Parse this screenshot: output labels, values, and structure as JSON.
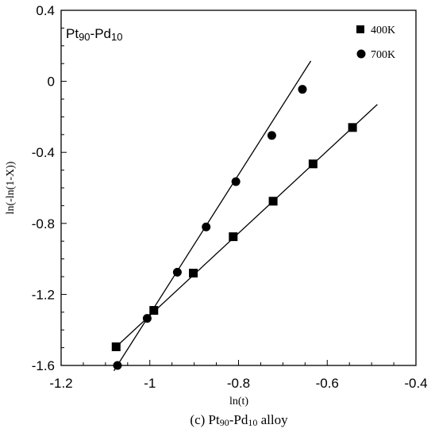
{
  "chart_data": {
    "type": "scatter",
    "title_main": "Pt",
    "title_sub1": "90",
    "title_mid": "-Pd",
    "title_sub2": "10",
    "xlabel": "ln(t)",
    "ylabel": "ln(-ln(1-X))",
    "xlim": [
      -1.2,
      -0.4
    ],
    "ylim": [
      -1.6,
      0.4
    ],
    "xticks": [
      -1.2,
      -1.0,
      -0.8,
      -0.6,
      -0.4
    ],
    "xtick_labels": [
      "-1.2",
      "-1",
      "-0.8",
      "-0.6",
      "-0.4"
    ],
    "yticks": [
      -1.6,
      -1.2,
      -0.8,
      -0.4,
      0.0,
      0.4
    ],
    "ytick_labels": [
      "-1.6",
      "-1.2",
      "-0.8",
      "-0.4",
      "0",
      "0.4"
    ],
    "grid": false,
    "legend_position": "top-right",
    "series": [
      {
        "name": "400K",
        "marker": "square",
        "x": [
          -1.076,
          -0.991,
          -0.902,
          -0.812,
          -0.722,
          -0.632,
          -0.543
        ],
        "y": [
          -1.495,
          -1.29,
          -1.08,
          -0.875,
          -0.675,
          -0.465,
          -0.26
        ],
        "fit_x": [
          -1.076,
          -0.487
        ],
        "fit_y": [
          -1.495,
          -0.13
        ]
      },
      {
        "name": "700K",
        "marker": "circle",
        "x": [
          -1.073,
          -1.006,
          -0.938,
          -0.873,
          -0.806,
          -0.725,
          -0.656
        ],
        "y": [
          -1.6,
          -1.335,
          -1.075,
          -0.82,
          -0.565,
          -0.305,
          -0.045
        ],
        "fit_x": [
          -1.081,
          -0.637
        ],
        "fit_y": [
          -1.63,
          0.115
        ]
      }
    ]
  },
  "caption": {
    "label": "(c)",
    "text_a": "Pt",
    "sub_a": "90",
    "text_b": "-Pd",
    "sub_b": "10",
    "text_c": "alloy"
  }
}
